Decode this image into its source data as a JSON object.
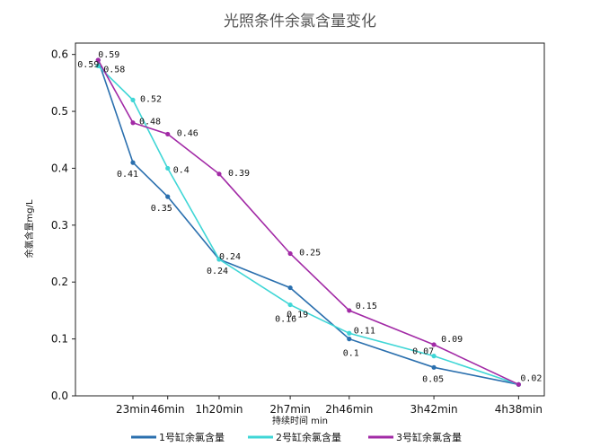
{
  "chart_data": {
    "type": "line",
    "title": "光照条件余氯含量变化",
    "xlabel": "持续时间 min",
    "ylabel": "余氯含量mg/L",
    "categories": [
      "",
      "23min",
      "46min",
      "1h20min",
      "2h7min",
      "2h46min",
      "3h42min",
      "4h38min"
    ],
    "x_minutes": [
      0,
      23,
      46,
      80,
      127,
      166,
      222,
      278
    ],
    "xlim": [
      -15,
      295
    ],
    "ylim": [
      0,
      0.62
    ],
    "yticks": [
      "0.0",
      "0.1",
      "0.2",
      "0.3",
      "0.4",
      "0.5",
      "0.6"
    ],
    "grid": false,
    "legend_position": "bottom",
    "series": [
      {
        "name": "1号缸余氯含量",
        "color": "#2a6fae",
        "values": [
          0.59,
          0.41,
          0.35,
          0.24,
          0.19,
          0.1,
          0.05,
          0.02
        ],
        "labels": [
          "0.59",
          "0.41",
          "0.35",
          "0.24",
          "0.19",
          "0.1",
          "0.05",
          "0.02"
        ]
      },
      {
        "name": "2号缸余氯含量",
        "color": "#3fd6d6",
        "values": [
          0.58,
          0.52,
          0.4,
          0.24,
          0.16,
          0.11,
          0.07,
          0.02
        ],
        "labels": [
          "0.58",
          "0.52",
          "0.4",
          "0.24",
          "0.16",
          "0.11",
          "0.07",
          ""
        ]
      },
      {
        "name": "3号缸余氯含量",
        "color": "#a22aa6",
        "values": [
          0.59,
          0.48,
          0.46,
          0.39,
          0.25,
          0.15,
          0.09,
          0.02
        ],
        "labels": [
          "0.59",
          "0.48",
          "0.46",
          "0.39",
          "0.25",
          "0.15",
          "0.09",
          ""
        ]
      }
    ]
  }
}
